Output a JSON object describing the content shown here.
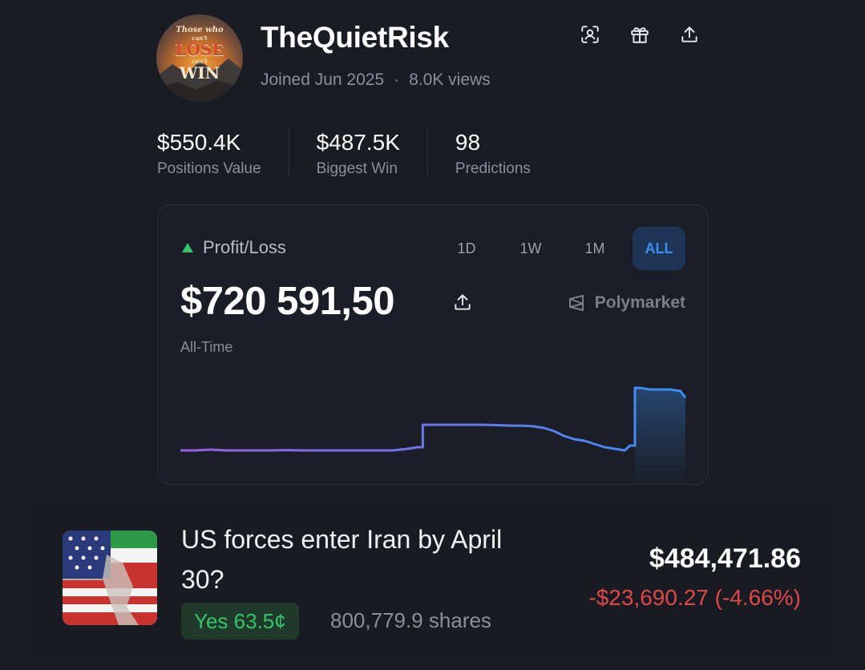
{
  "profile": {
    "username": "TheQuietRisk",
    "joined": "Joined Jun 2025",
    "separator": "·",
    "views": "8.0K views",
    "avatar_text": "Those who can't LOSE can't WIN"
  },
  "stats": [
    {
      "value": "$550.4K",
      "label": "Positions Value"
    },
    {
      "value": "$487.5K",
      "label": "Biggest Win"
    },
    {
      "value": "98",
      "label": "Predictions"
    }
  ],
  "pnl": {
    "label": "Profit/Loss",
    "value": "$720 591,50",
    "period": "All-Time",
    "brand": "Polymarket",
    "ranges": [
      "1D",
      "1W",
      "1M",
      "ALL"
    ],
    "active_range": "ALL",
    "colors": {
      "up": "#35c46b",
      "line_start": "#9b5de5",
      "line_end": "#3b8ff5"
    }
  },
  "chart_data": {
    "type": "line",
    "title": "",
    "xlabel": "",
    "ylabel": "",
    "x": [
      0,
      3,
      6,
      9,
      12,
      15,
      18,
      21,
      24,
      27,
      30,
      33,
      36,
      39,
      42,
      45,
      47,
      48,
      50,
      53,
      56,
      59,
      62,
      65,
      68,
      70,
      72,
      74,
      76,
      78,
      80,
      82,
      84,
      86,
      88,
      89,
      90,
      91,
      93,
      95,
      97,
      99,
      100
    ],
    "y": [
      4,
      4,
      4.5,
      4,
      4,
      4,
      4,
      4.2,
      4,
      4,
      4,
      4,
      4,
      4,
      4,
      5,
      6,
      20,
      20,
      20,
      20,
      20,
      19.8,
      19.5,
      19.4,
      19,
      18,
      16,
      13,
      11,
      10,
      8,
      6,
      5,
      4,
      7,
      43,
      43,
      42,
      42,
      42,
      41,
      37
    ],
    "grid": false,
    "legend": "none"
  },
  "position": {
    "title": "US forces enter Iran by April 30?",
    "badge": "Yes 63.5¢",
    "shares": "800,779.9 shares",
    "value": "$484,471.86",
    "change": "-$23,690.27 (-4.66%)"
  }
}
